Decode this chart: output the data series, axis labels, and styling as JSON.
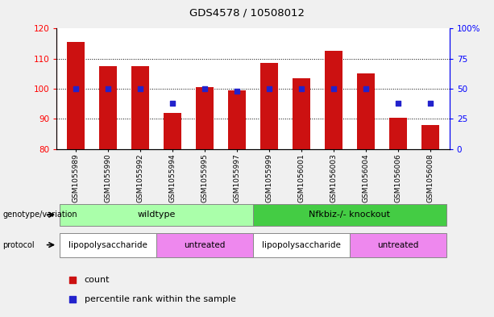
{
  "title": "GDS4578 / 10508012",
  "samples": [
    "GSM1055989",
    "GSM1055990",
    "GSM1055992",
    "GSM1055994",
    "GSM1055995",
    "GSM1055997",
    "GSM1055999",
    "GSM1056001",
    "GSM1056003",
    "GSM1056004",
    "GSM1056006",
    "GSM1056008"
  ],
  "counts": [
    115.5,
    107.5,
    107.5,
    92.0,
    100.5,
    99.5,
    108.5,
    103.5,
    112.5,
    105.0,
    90.5,
    88.0
  ],
  "percentiles": [
    50,
    50,
    50,
    38,
    50,
    48,
    50,
    50,
    50,
    50,
    38,
    38
  ],
  "ylim_left": [
    80,
    120
  ],
  "ylim_right": [
    0,
    100
  ],
  "yticks_left": [
    80,
    90,
    100,
    110,
    120
  ],
  "yticks_right": [
    0,
    25,
    50,
    75,
    100
  ],
  "bar_color": "#cc1111",
  "dot_color": "#2222cc",
  "fig_bg": "#f0f0f0",
  "plot_bg": "#ffffff",
  "genotype_groups": [
    {
      "label": "wildtype",
      "start": 0,
      "end": 5,
      "color": "#aaffaa"
    },
    {
      "label": "Nfkbiz-/- knockout",
      "start": 6,
      "end": 11,
      "color": "#44cc44"
    }
  ],
  "protocol_groups": [
    {
      "label": "lipopolysaccharide",
      "start": 0,
      "end": 2,
      "color": "#ffffff"
    },
    {
      "label": "untreated",
      "start": 3,
      "end": 5,
      "color": "#ee88ee"
    },
    {
      "label": "lipopolysaccharide",
      "start": 6,
      "end": 8,
      "color": "#ffffff"
    },
    {
      "label": "untreated",
      "start": 9,
      "end": 11,
      "color": "#ee88ee"
    }
  ],
  "legend_items": [
    {
      "label": "count",
      "color": "#cc1111"
    },
    {
      "label": "percentile rank within the sample",
      "color": "#2222cc"
    }
  ]
}
